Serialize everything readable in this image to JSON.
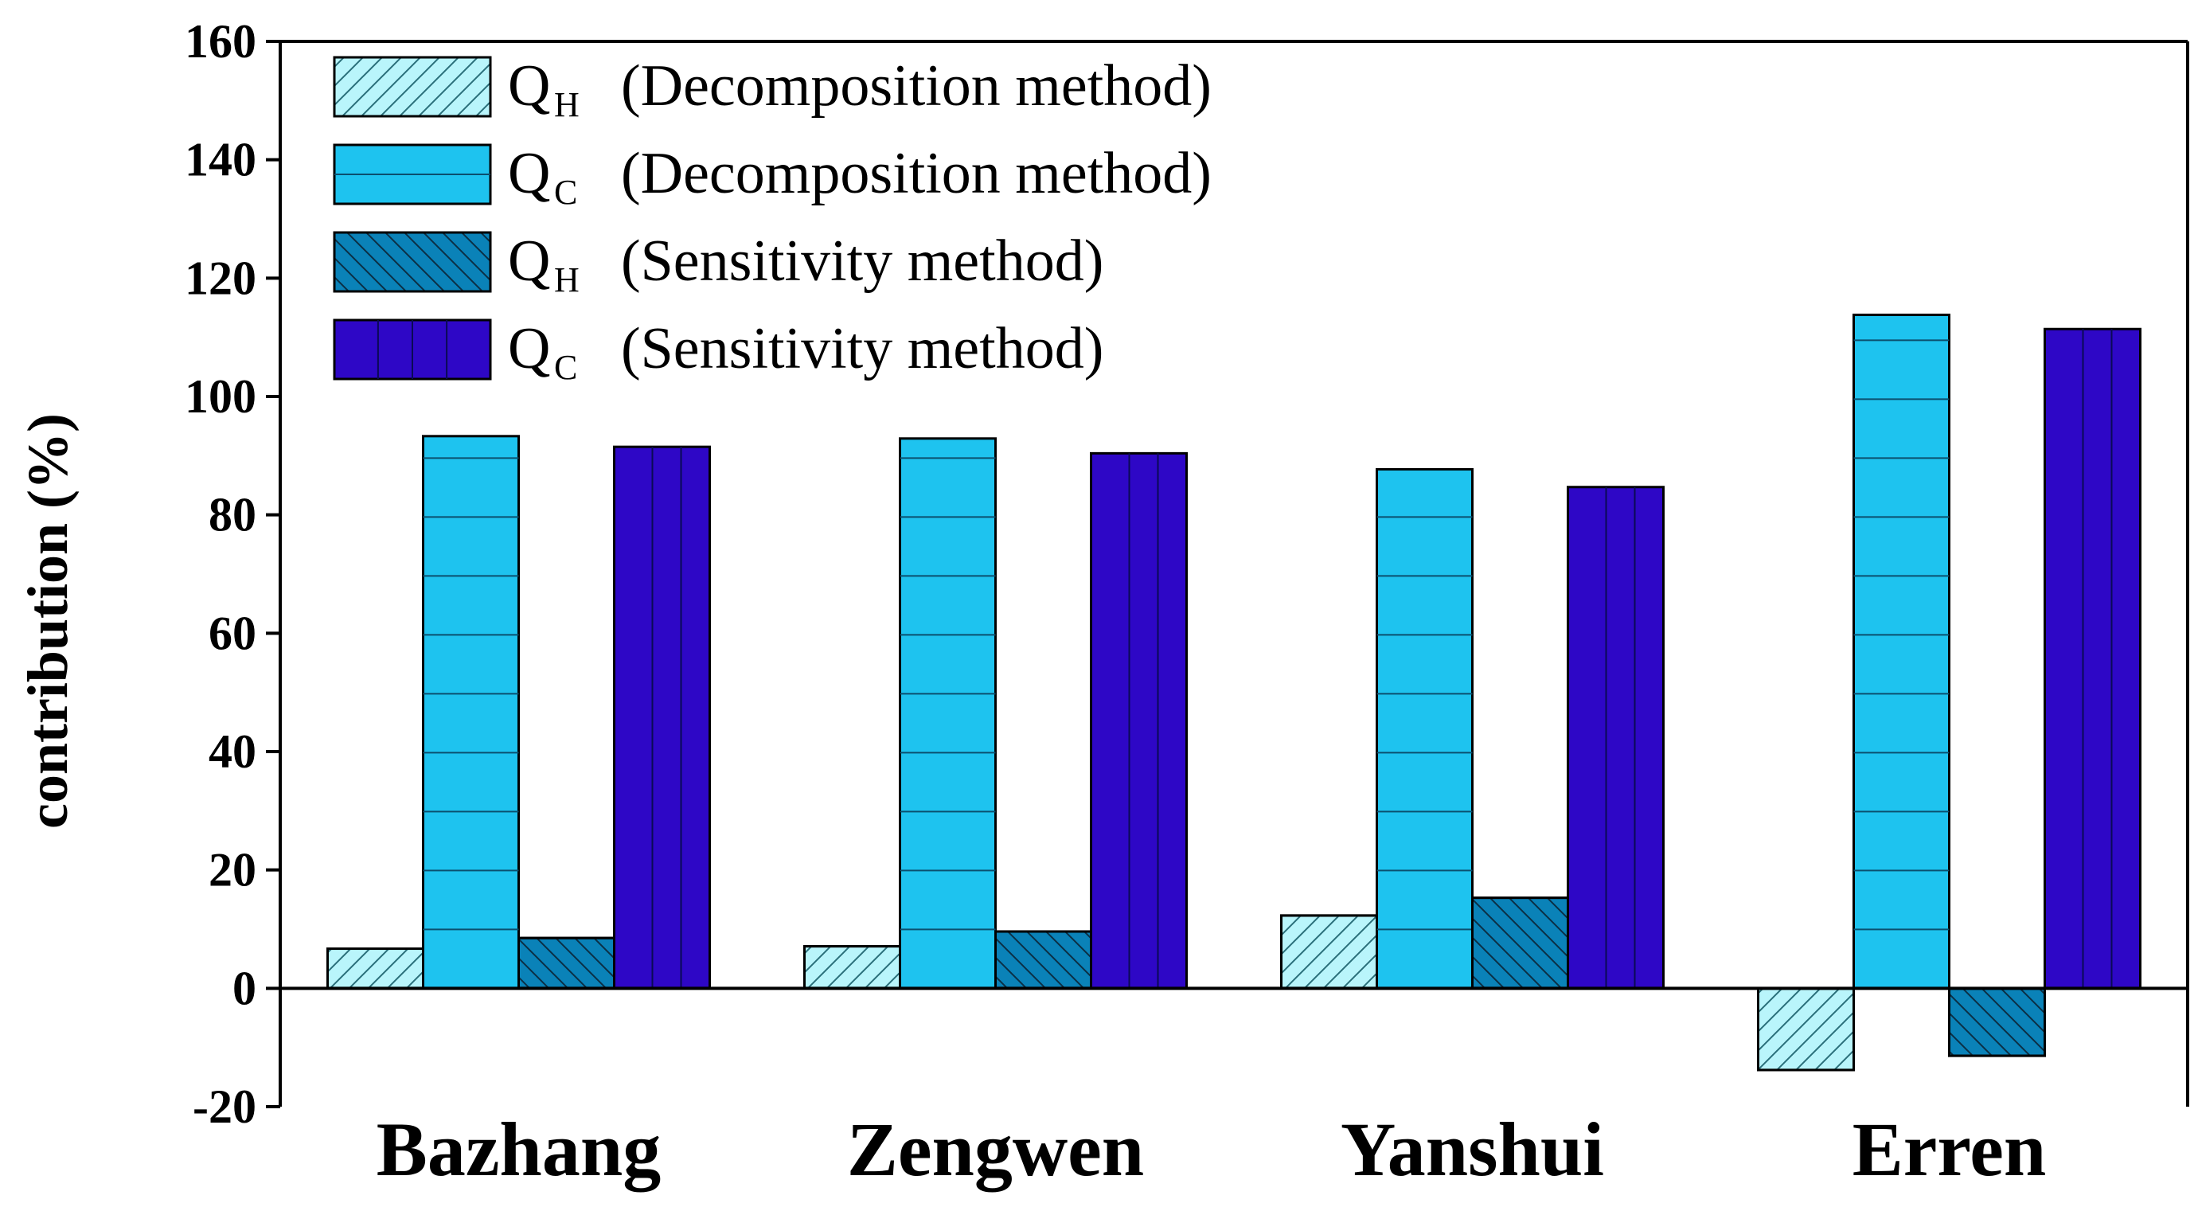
{
  "chart_data": {
    "type": "bar",
    "title": "",
    "xlabel": "",
    "ylabel": "contribution (%)",
    "ylim": [
      -20,
      160
    ],
    "yticks": [
      -20,
      0,
      20,
      40,
      60,
      80,
      100,
      120,
      140,
      160
    ],
    "categories": [
      "Bazhang",
      "Zengwen",
      "Yanshui",
      "Erren"
    ],
    "legend_position": "top-left",
    "series": [
      {
        "name": "QH (Decomposition method)",
        "q": "Q",
        "sub": "H",
        "method": "(Decomposition method)",
        "values": [
          6.7,
          7.1,
          12.3,
          -13.8
        ],
        "color": "#b9f5fb",
        "pattern": "hatch-up"
      },
      {
        "name": "QC (Decomposition method)",
        "q": "Q",
        "sub": "C",
        "method": "(Decomposition method)",
        "values": [
          93.3,
          92.9,
          87.7,
          113.8
        ],
        "color": "#1ec3ef",
        "pattern": "hlines"
      },
      {
        "name": "QH (Sensitivity method)",
        "q": "Q",
        "sub": "H",
        "method": "(Sensitivity method)",
        "values": [
          8.5,
          9.6,
          15.3,
          -11.4
        ],
        "color": "#0a82b8",
        "pattern": "hatch-down"
      },
      {
        "name": "QC (Sensitivity method)",
        "q": "Q",
        "sub": "C",
        "method": "(Sensitivity method)",
        "values": [
          91.5,
          90.4,
          84.7,
          111.4
        ],
        "color": "#2e07c6",
        "pattern": "vlines"
      }
    ]
  }
}
